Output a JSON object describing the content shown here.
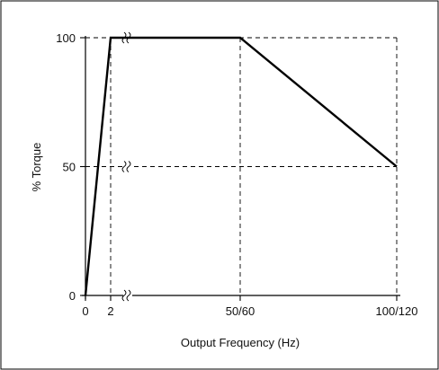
{
  "chart_data": {
    "type": "line",
    "title": "",
    "xlabel": "Output Frequency (Hz)",
    "ylabel": "% Torque",
    "x_ticks": [
      {
        "x": 0,
        "label": "0"
      },
      {
        "x": 2,
        "label": "2"
      },
      {
        "x": 60,
        "label": "50/60"
      },
      {
        "x": 120,
        "label": "100/120"
      }
    ],
    "y_ticks": [
      {
        "y": 0,
        "label": "0"
      },
      {
        "y": 50,
        "label": "50"
      },
      {
        "y": 100,
        "label": "100"
      }
    ],
    "xlim": [
      0,
      120
    ],
    "ylim": [
      0,
      100
    ],
    "x_scale": "broken (axis break marks after 2 Hz)",
    "series": [
      {
        "points": [
          [
            0,
            0
          ],
          [
            2,
            100
          ],
          [
            60,
            100
          ],
          [
            120,
            50
          ]
        ]
      }
    ],
    "reference_lines": "dashed guides at 2, 50/60 and 100/120 Hz and at 50 % and 100 % torque",
    "grid": false,
    "legend": "none",
    "colors": {
      "line": "#000000",
      "frame": "#000000",
      "guides": "#000000"
    }
  }
}
